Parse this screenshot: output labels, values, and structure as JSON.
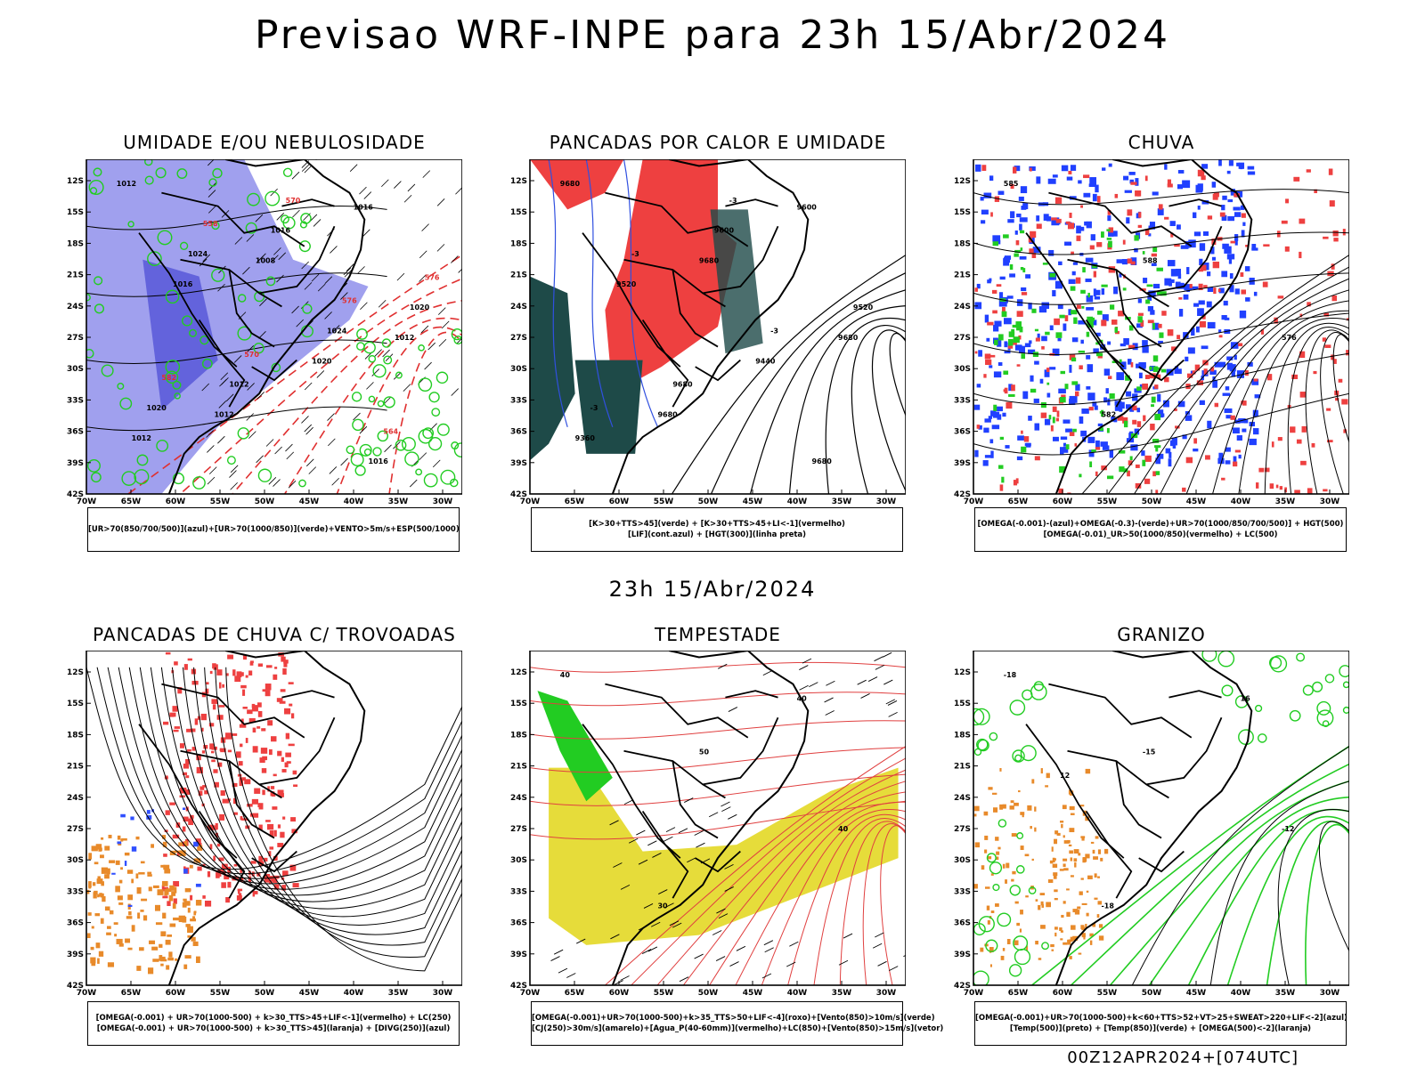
{
  "main_title": "Previsao WRF-INPE  para 23h 15/Abr/2024",
  "mid_title": "23h 15/Abr/2024",
  "footer": "00Z12APR2024+[074UTC]",
  "lat_labels": [
    "12S",
    "15S",
    "18S",
    "21S",
    "24S",
    "27S",
    "30S",
    "33S",
    "36S",
    "39S",
    "42S"
  ],
  "lon_labels": [
    "70W",
    "65W",
    "60W",
    "55W",
    "50W",
    "45W",
    "40W",
    "35W",
    "30W"
  ],
  "panels": [
    {
      "title": "UMIDADE E/OU NEBULOSIDADE",
      "legend": [
        "[UR>70(850/700/500)](azul)+[UR>70(1000/850)](verde)+VENTO>5m/s+ESP(500/1000)"
      ],
      "labels": [
        "1012",
        "1008",
        "1012",
        "1012",
        "1016",
        "1016",
        "1020",
        "1012",
        "1016",
        "1020",
        "1012",
        "1016",
        "1024",
        "1024",
        "1020",
        "570",
        "576",
        "570",
        "564",
        "558",
        "576",
        "582"
      ]
    },
    {
      "title": "PANCADAS POR CALOR E UMIDADE",
      "legend": [
        "[K>30+TTS>45](verde) + [K>30+TTS>45+LI<-1](vermelho)",
        "[LIF](cont.azul) + [HGT(300)](linha preta)"
      ],
      "labels": [
        "9680",
        "9680",
        "9680",
        "9680",
        "9600",
        "9520",
        "9440",
        "9360",
        "9600",
        "9520",
        "9680",
        "9680",
        "-3",
        "-3",
        "-3",
        "-3"
      ]
    },
    {
      "title": "CHUVA",
      "legend": [
        "[OMEGA(-0.001)-(azul)+OMEGA(-0.3)-(verde)+UR>70(1000/850/700/500)] + HGT(500)",
        "[OMEGA(-0.01)_UR>50(1000/850)(vermelho) + LC(500)"
      ],
      "labels": [
        "585",
        "588",
        "576",
        "582"
      ]
    },
    {
      "title": "PANCADAS DE CHUVA C/ TROVOADAS",
      "legend": [
        "[OMEGA(-0.001) + UR>70(1000-500) + k>30_TTS>45+LIF<-1](vermelho) + LC(250)",
        "[OMEGA(-0.001) + UR>70(1000-500) + k>30_TTS>45](laranja) + [DIVG(250)](azul)"
      ],
      "labels": []
    },
    {
      "title": "TEMPESTADE",
      "legend": [
        "[OMEGA(-0.001)+UR>70(1000-500)+k>35_TTS>50+LIF<-4](roxo)+[Vento(850)>10m/s](verde)",
        "[CJ(250)>30m/s](amarelo)+[Agua_P(40-60mm)](vermelho)+LC(850)+[Vento(850)>15m/s](vetor)"
      ],
      "labels": [
        "40",
        "50",
        "40",
        "30",
        "40"
      ]
    },
    {
      "title": "GRANIZO",
      "legend": [
        "[OMEGA(-0.001)+UR>70(1000-500)+k<60+TTS>52+VT>25+SWEAT>220+LIF<-2](azul)",
        "[Temp(500)](preto) + [Temp(850)](verde) + [OMEGA(500)<-2](laranja)"
      ],
      "labels": [
        "-18",
        "-15",
        "-12",
        "-18",
        "16",
        "12"
      ]
    }
  ],
  "colors": {
    "blue_shade": "#8080e8",
    "green": "#22cc22",
    "red": "#ee4040",
    "dark_teal": "#1e4a48",
    "yellow": "#e6dc3a",
    "orange": "#e88a2a"
  }
}
